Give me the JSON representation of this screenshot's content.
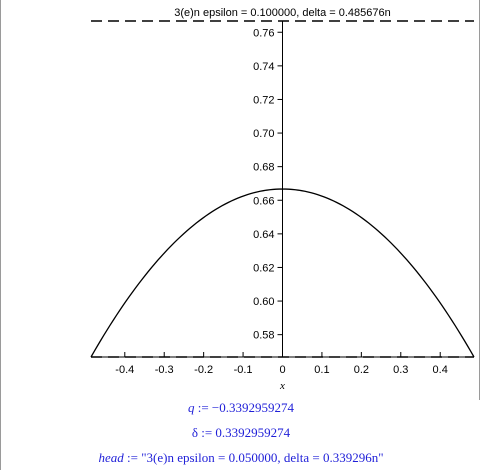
{
  "chart_data": {
    "type": "line",
    "title": "3(e)n epsilon = 0.100000, delta = 0.485676n",
    "xlabel": "x",
    "ylabel": "",
    "xlim": [
      -0.4857,
      0.4857
    ],
    "ylim": [
      0.5667,
      0.7667
    ],
    "xticks": [
      "-0.4",
      "-0.3",
      "-0.2",
      "-0.1",
      "0",
      "0.1",
      "0.2",
      "0.3",
      "0.4"
    ],
    "xtick_values": [
      -0.4,
      -0.3,
      -0.2,
      -0.1,
      0,
      0.1,
      0.2,
      0.3,
      0.4
    ],
    "yticks": [
      "0.58",
      "0.60",
      "0.62",
      "0.64",
      "0.66",
      "0.68",
      "0.70",
      "0.72",
      "0.74",
      "0.76"
    ],
    "ytick_values": [
      0.58,
      0.6,
      0.62,
      0.64,
      0.66,
      0.68,
      0.7,
      0.72,
      0.74,
      0.76
    ],
    "series": [
      {
        "style": "solid",
        "x": [
          -0.4857,
          -0.4,
          -0.3,
          -0.2,
          -0.1,
          0,
          0.1,
          0.2,
          0.3,
          0.4,
          0.4857
        ],
        "y": [
          0.5667,
          0.5901,
          0.6162,
          0.6387,
          0.655,
          0.6667,
          0.655,
          0.6387,
          0.6162,
          0.5901,
          0.5667
        ]
      },
      {
        "style": "dashed",
        "x": [
          -0.4857,
          0.4857
        ],
        "y": [
          0.7667,
          0.7667
        ]
      },
      {
        "style": "dashed",
        "x": [
          -0.4857,
          0.4857
        ],
        "y": [
          0.5667,
          0.5667
        ]
      }
    ],
    "grid": false,
    "legend": "none"
  },
  "output": {
    "q_name": "q",
    "q_rest": " := −0.3392959274",
    "delta_line": "δ := 0.3392959274",
    "head_name": "head",
    "head_rest": " := \"3(e)n epsilon = 0.050000, delta = 0.339296n\""
  },
  "colors": {
    "curve": "#000000",
    "output_text": "#1f1fd8",
    "frame": "#9a9a9a"
  }
}
